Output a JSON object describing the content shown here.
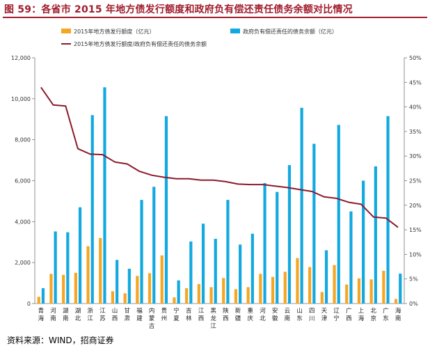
{
  "figure": {
    "title": "图 59：各省市 2015 年地方债发行额度和政府负有偿还责任债务余额对比情况",
    "source": "资料来源：WIND，招商证券"
  },
  "colors": {
    "bar_issue": "#f5a623",
    "bar_debt": "#12a9e0",
    "line_ratio": "#8b1a2b",
    "axis": "#777777"
  },
  "chart_data": {
    "type": "bar",
    "categories": [
      "青海",
      "河南",
      "湖南",
      "湖北",
      "浙江",
      "江苏",
      "山西",
      "甘肃",
      "福建",
      "内蒙古",
      "贵州",
      "宁夏",
      "吉林",
      "江西",
      "黑龙江",
      "陕西",
      "新疆",
      "重庆",
      "河北",
      "安徽",
      "云南",
      "山东",
      "四川",
      "天津",
      "辽宁",
      "广西",
      "上海",
      "北京",
      "广东",
      "海南"
    ],
    "series": [
      {
        "name": "2015年地方债发行额度（亿元）",
        "axis": "left",
        "kind": "bar",
        "values": [
          330,
          1450,
          1400,
          1500,
          2800,
          3200,
          600,
          500,
          1350,
          1480,
          2350,
          300,
          750,
          950,
          800,
          1250,
          700,
          800,
          1450,
          1300,
          1550,
          2220,
          1780,
          560,
          1880,
          930,
          1230,
          1180,
          1600,
          220
        ]
      },
      {
        "name": "政府负有偿还责任的债务余额（亿元）",
        "axis": "left",
        "kind": "bar",
        "values": [
          750,
          3520,
          3480,
          4700,
          9200,
          10560,
          2130,
          1700,
          5060,
          5700,
          9150,
          1130,
          3030,
          3900,
          3160,
          5060,
          2880,
          3410,
          5880,
          5450,
          6760,
          9560,
          7800,
          2600,
          8720,
          4500,
          6000,
          6700,
          9150,
          1460
        ]
      },
      {
        "name": "2015年地方债发行额度/政府负有偿还责任的债务余额",
        "axis": "right",
        "kind": "line",
        "values": [
          44.0,
          40.4,
          40.2,
          31.5,
          30.4,
          30.3,
          28.8,
          28.4,
          26.9,
          26.1,
          25.7,
          25.4,
          25.4,
          25.1,
          25.1,
          24.8,
          24.3,
          24.2,
          24.2,
          23.9,
          23.6,
          23.2,
          22.8,
          21.7,
          21.4,
          20.6,
          20.2,
          17.6,
          17.4,
          15.5
        ]
      }
    ],
    "y_left": {
      "min": 0,
      "max": 12000,
      "ticks": [
        0,
        2000,
        4000,
        6000,
        8000,
        10000,
        12000
      ],
      "tick_labels": [
        "0",
        "2,000",
        "4,000",
        "6,000",
        "8,000",
        "10,000",
        "12,000"
      ]
    },
    "y_right": {
      "min": 0,
      "max": 50,
      "ticks": [
        0,
        5,
        10,
        15,
        20,
        25,
        30,
        35,
        40,
        45,
        50
      ],
      "tick_labels": [
        "0%",
        "5%",
        "10%",
        "15%",
        "20%",
        "25%",
        "30%",
        "35%",
        "40%",
        "45%",
        "50%"
      ]
    },
    "legend_position": "top",
    "xlabel": "",
    "ylabel": "",
    "grid": false
  }
}
